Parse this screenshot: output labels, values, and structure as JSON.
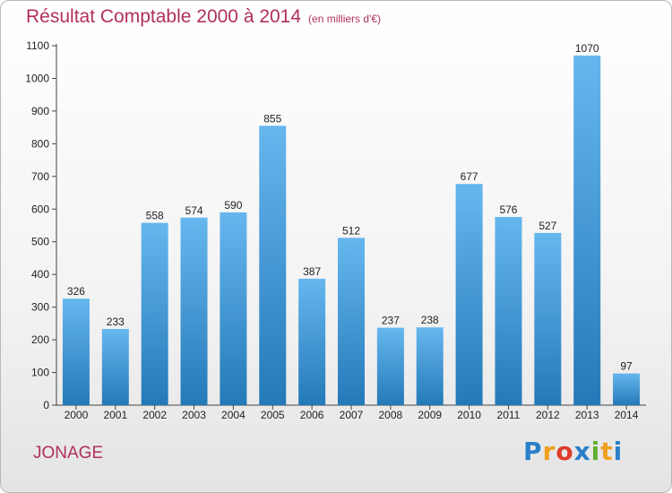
{
  "title": "Résultat Comptable 2000 à 2014",
  "subtitle": "(en milliers d'€)",
  "city": "JONAGE",
  "logo": {
    "text": "Proxiti",
    "letters": [
      "P",
      "r",
      "o",
      "x",
      "i",
      "t",
      "i"
    ],
    "colors": [
      "#2a7fc9",
      "#f0a020",
      "#e03a2a",
      "#2a7fc9",
      "#60b030",
      "#f0a020",
      "#2a7fc9"
    ]
  },
  "colors": {
    "bar_top": "#66b7ee",
    "bar_bottom": "#2479b8",
    "title": "#b0305a"
  },
  "chart_data": {
    "type": "bar",
    "categories": [
      "2000",
      "2001",
      "2002",
      "2003",
      "2004",
      "2005",
      "2006",
      "2007",
      "2008",
      "2009",
      "2010",
      "2011",
      "2012",
      "2013",
      "2014"
    ],
    "values": [
      326,
      233,
      558,
      574,
      590,
      855,
      387,
      512,
      237,
      238,
      677,
      576,
      527,
      1070,
      97
    ],
    "yticks": [
      0,
      100,
      200,
      300,
      400,
      500,
      600,
      700,
      800,
      900,
      1000,
      1100
    ],
    "ylim": [
      0,
      1100
    ],
    "xlabel": "",
    "ylabel": "",
    "grid": false,
    "legend": "none"
  }
}
